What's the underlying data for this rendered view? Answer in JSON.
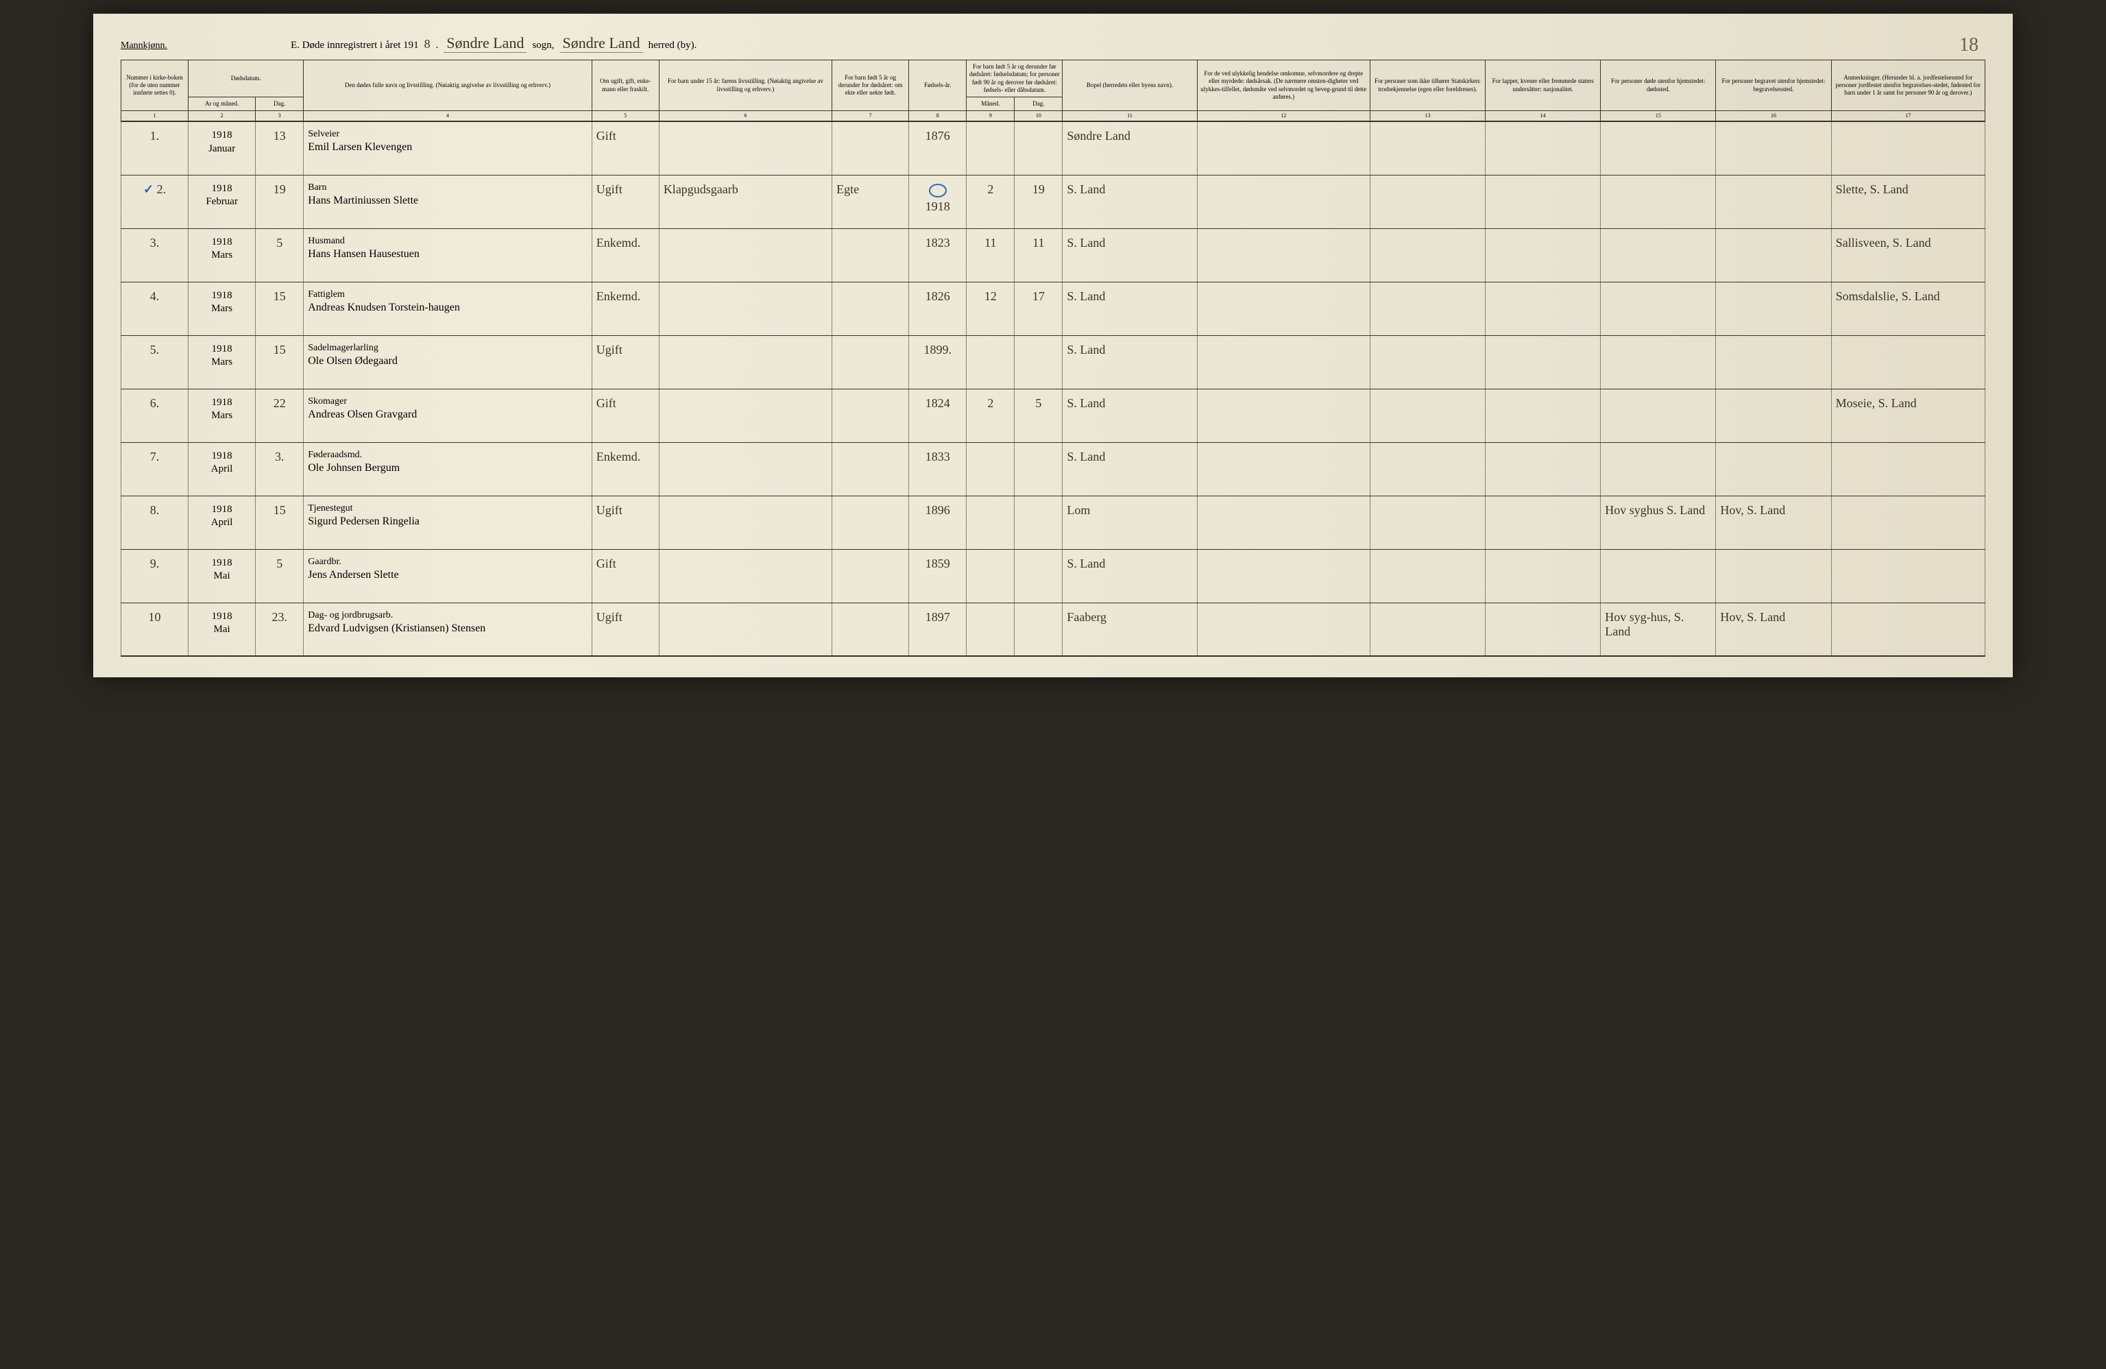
{
  "header": {
    "gender": "Mannkjønn.",
    "title_prefix": "E. Døde innregistrert i året 191",
    "year_suffix": "8",
    "sogn_cursive": "Søndre Land",
    "sogn_label": "sogn,",
    "herred_cursive": "Søndre Land",
    "herred_label": "herred (by).",
    "page_number": "18"
  },
  "columns": {
    "c1": "Nummer i kirke-boken (for de uten nummer innførte settes 0).",
    "c2_group": "Dødsdatum.",
    "c2": "Ar og måned.",
    "c3": "Dag.",
    "c4": "Den dødes fulle navn og livsstilling. (Nøiaktig angivelse av livsstilling og erhverv.)",
    "c5": "Om ugift, gift, enke-mann eller fraskilt.",
    "c6": "For barn under 15 år: farens livsstilling. (Nøiaktig angivelse av livsstilling og erhverv.)",
    "c7": "For barn født 5 år og derunder for dødsåret: om ekte eller uekte født.",
    "c8": "Fødsels-år.",
    "c9_group": "For barn født 5 år og derunder før dødsåret: fødselsdatum; for personer født 90 år og derover før dødsåret: fødsels- eller dåbsdatum.",
    "c9": "Måned.",
    "c10": "Dag.",
    "c11": "Bopel (herredets eller byens navn).",
    "c12": "For de ved ulykkelig hendelse omkomne, selvmordere og drepte eller myrdede: dødsårsak. (De nærmere omsten-digheter ved ulykkes-tilfellet, dødsmåte ved selvmordet og beveg-grund til dette anføres.)",
    "c13": "For personer som ikke tilhører Statskirken: trosbekjennelse (egen eller foreldrenes).",
    "c14": "For lapper, kvener eller fremmede staters undersåtter: nasjonalitet.",
    "c15": "For personer døde utenfor hjemstedet: dødssted.",
    "c16": "For personer begravet utenfor hjemstedet: begravelsessted.",
    "c17": "Anmerkninger. (Herunder bl. a. jordfestelsessted for personer jordfestet utenfor begravelses-stedet, fødested for barn under 1 år samt for personer 90 år og derover.)"
  },
  "colnums": [
    "1",
    "2",
    "3",
    "4",
    "5",
    "6",
    "7",
    "8",
    "9",
    "10",
    "11",
    "12",
    "13",
    "14",
    "15",
    "16",
    "17"
  ],
  "rows": [
    {
      "num": "1.",
      "year": "1918",
      "month": "Januar",
      "day": "13",
      "occupation": "Selveier",
      "name": "Emil Larsen Klevengen",
      "status": "Gift",
      "father": "",
      "ekte": "",
      "birthyear": "1876",
      "bmonth": "",
      "bday": "",
      "bopel": "Søndre Land",
      "col15": "",
      "col16": "",
      "remark": ""
    },
    {
      "num": "2.",
      "mark": "✓",
      "year": "1918",
      "month": "Februar",
      "day": "19",
      "occupation": "Barn",
      "name": "Hans Martiniussen Slette",
      "status": "Ugift",
      "father": "Klapgudsgaarb",
      "ekte": "Egte",
      "birthyear": "1918",
      "bmonth": "2",
      "bday": "19",
      "bopel": "S. Land",
      "col15": "",
      "col16": "",
      "remark": "Slette, S. Land",
      "blue_circle": true
    },
    {
      "num": "3.",
      "year": "1918",
      "month": "Mars",
      "day": "5",
      "occupation": "Husmand",
      "name": "Hans Hansen Hausestuen",
      "status": "Enkemd.",
      "father": "",
      "ekte": "",
      "birthyear": "1823",
      "bmonth": "11",
      "bday": "11",
      "bopel": "S. Land",
      "col15": "",
      "col16": "",
      "remark": "Sallisveen, S. Land"
    },
    {
      "num": "4.",
      "year": "1918",
      "month": "Mars",
      "day": "15",
      "occupation": "Fattiglem",
      "name": "Andreas Knudsen Torstein-haugen",
      "status": "Enkemd.",
      "father": "",
      "ekte": "",
      "birthyear": "1826",
      "bmonth": "12",
      "bday": "17",
      "bopel": "S. Land",
      "col15": "",
      "col16": "",
      "remark": "Somsdalslie, S. Land"
    },
    {
      "num": "5.",
      "year": "1918",
      "month": "Mars",
      "day": "15",
      "occupation": "Sadelmagerlarling",
      "name": "Ole Olsen Ødegaard",
      "status": "Ugift",
      "father": "",
      "ekte": "",
      "birthyear": "1899.",
      "bmonth": "",
      "bday": "",
      "bopel": "S. Land",
      "col15": "",
      "col16": "",
      "remark": ""
    },
    {
      "num": "6.",
      "year": "1918",
      "month": "Mars",
      "day": "22",
      "occupation": "Skomager",
      "name": "Andreas Olsen Gravgard",
      "status": "Gift",
      "father": "",
      "ekte": "",
      "birthyear": "1824",
      "bmonth": "2",
      "bday": "5",
      "bopel": "S. Land",
      "col15": "",
      "col16": "",
      "remark": "Moseie, S. Land"
    },
    {
      "num": "7.",
      "year": "1918",
      "month": "April",
      "day": "3.",
      "occupation": "Føderaadsmd.",
      "name": "Ole Johnsen Bergum",
      "status": "Enkemd.",
      "father": "",
      "ekte": "",
      "birthyear": "1833",
      "bmonth": "",
      "bday": "",
      "bopel": "S. Land",
      "col15": "",
      "col16": "",
      "remark": ""
    },
    {
      "num": "8.",
      "year": "1918",
      "month": "April",
      "day": "15",
      "occupation": "Tjenestegut",
      "name": "Sigurd Pedersen Ringelia",
      "status": "Ugift",
      "father": "",
      "ekte": "",
      "birthyear": "1896",
      "bmonth": "",
      "bday": "",
      "bopel": "Lom",
      "col15": "Hov syghus S. Land",
      "col16": "Hov, S. Land",
      "remark": ""
    },
    {
      "num": "9.",
      "year": "1918",
      "month": "Mai",
      "day": "5",
      "occupation": "Gaardbr.",
      "name": "Jens Andersen Slette",
      "status": "Gift",
      "father": "",
      "ekte": "",
      "birthyear": "1859",
      "bmonth": "",
      "bday": "",
      "bopel": "S. Land",
      "col15": "",
      "col16": "",
      "remark": ""
    },
    {
      "num": "10",
      "year": "1918",
      "month": "Mai",
      "day": "23.",
      "occupation": "Dag- og jordbrugsarb.",
      "name": "Edvard Ludvigsen (Kristiansen) Stensen",
      "status": "Ugift",
      "father": "",
      "ekte": "",
      "birthyear": "1897",
      "bmonth": "",
      "bday": "",
      "bopel": "Faaberg",
      "col15": "Hov syg-hus, S. Land",
      "col16": "Hov, S. Land",
      "remark": ""
    }
  ],
  "colors": {
    "paper": "#ede7d6",
    "ink": "#3a3428",
    "blue": "#2a5fa8",
    "rule": "#8a8270"
  }
}
